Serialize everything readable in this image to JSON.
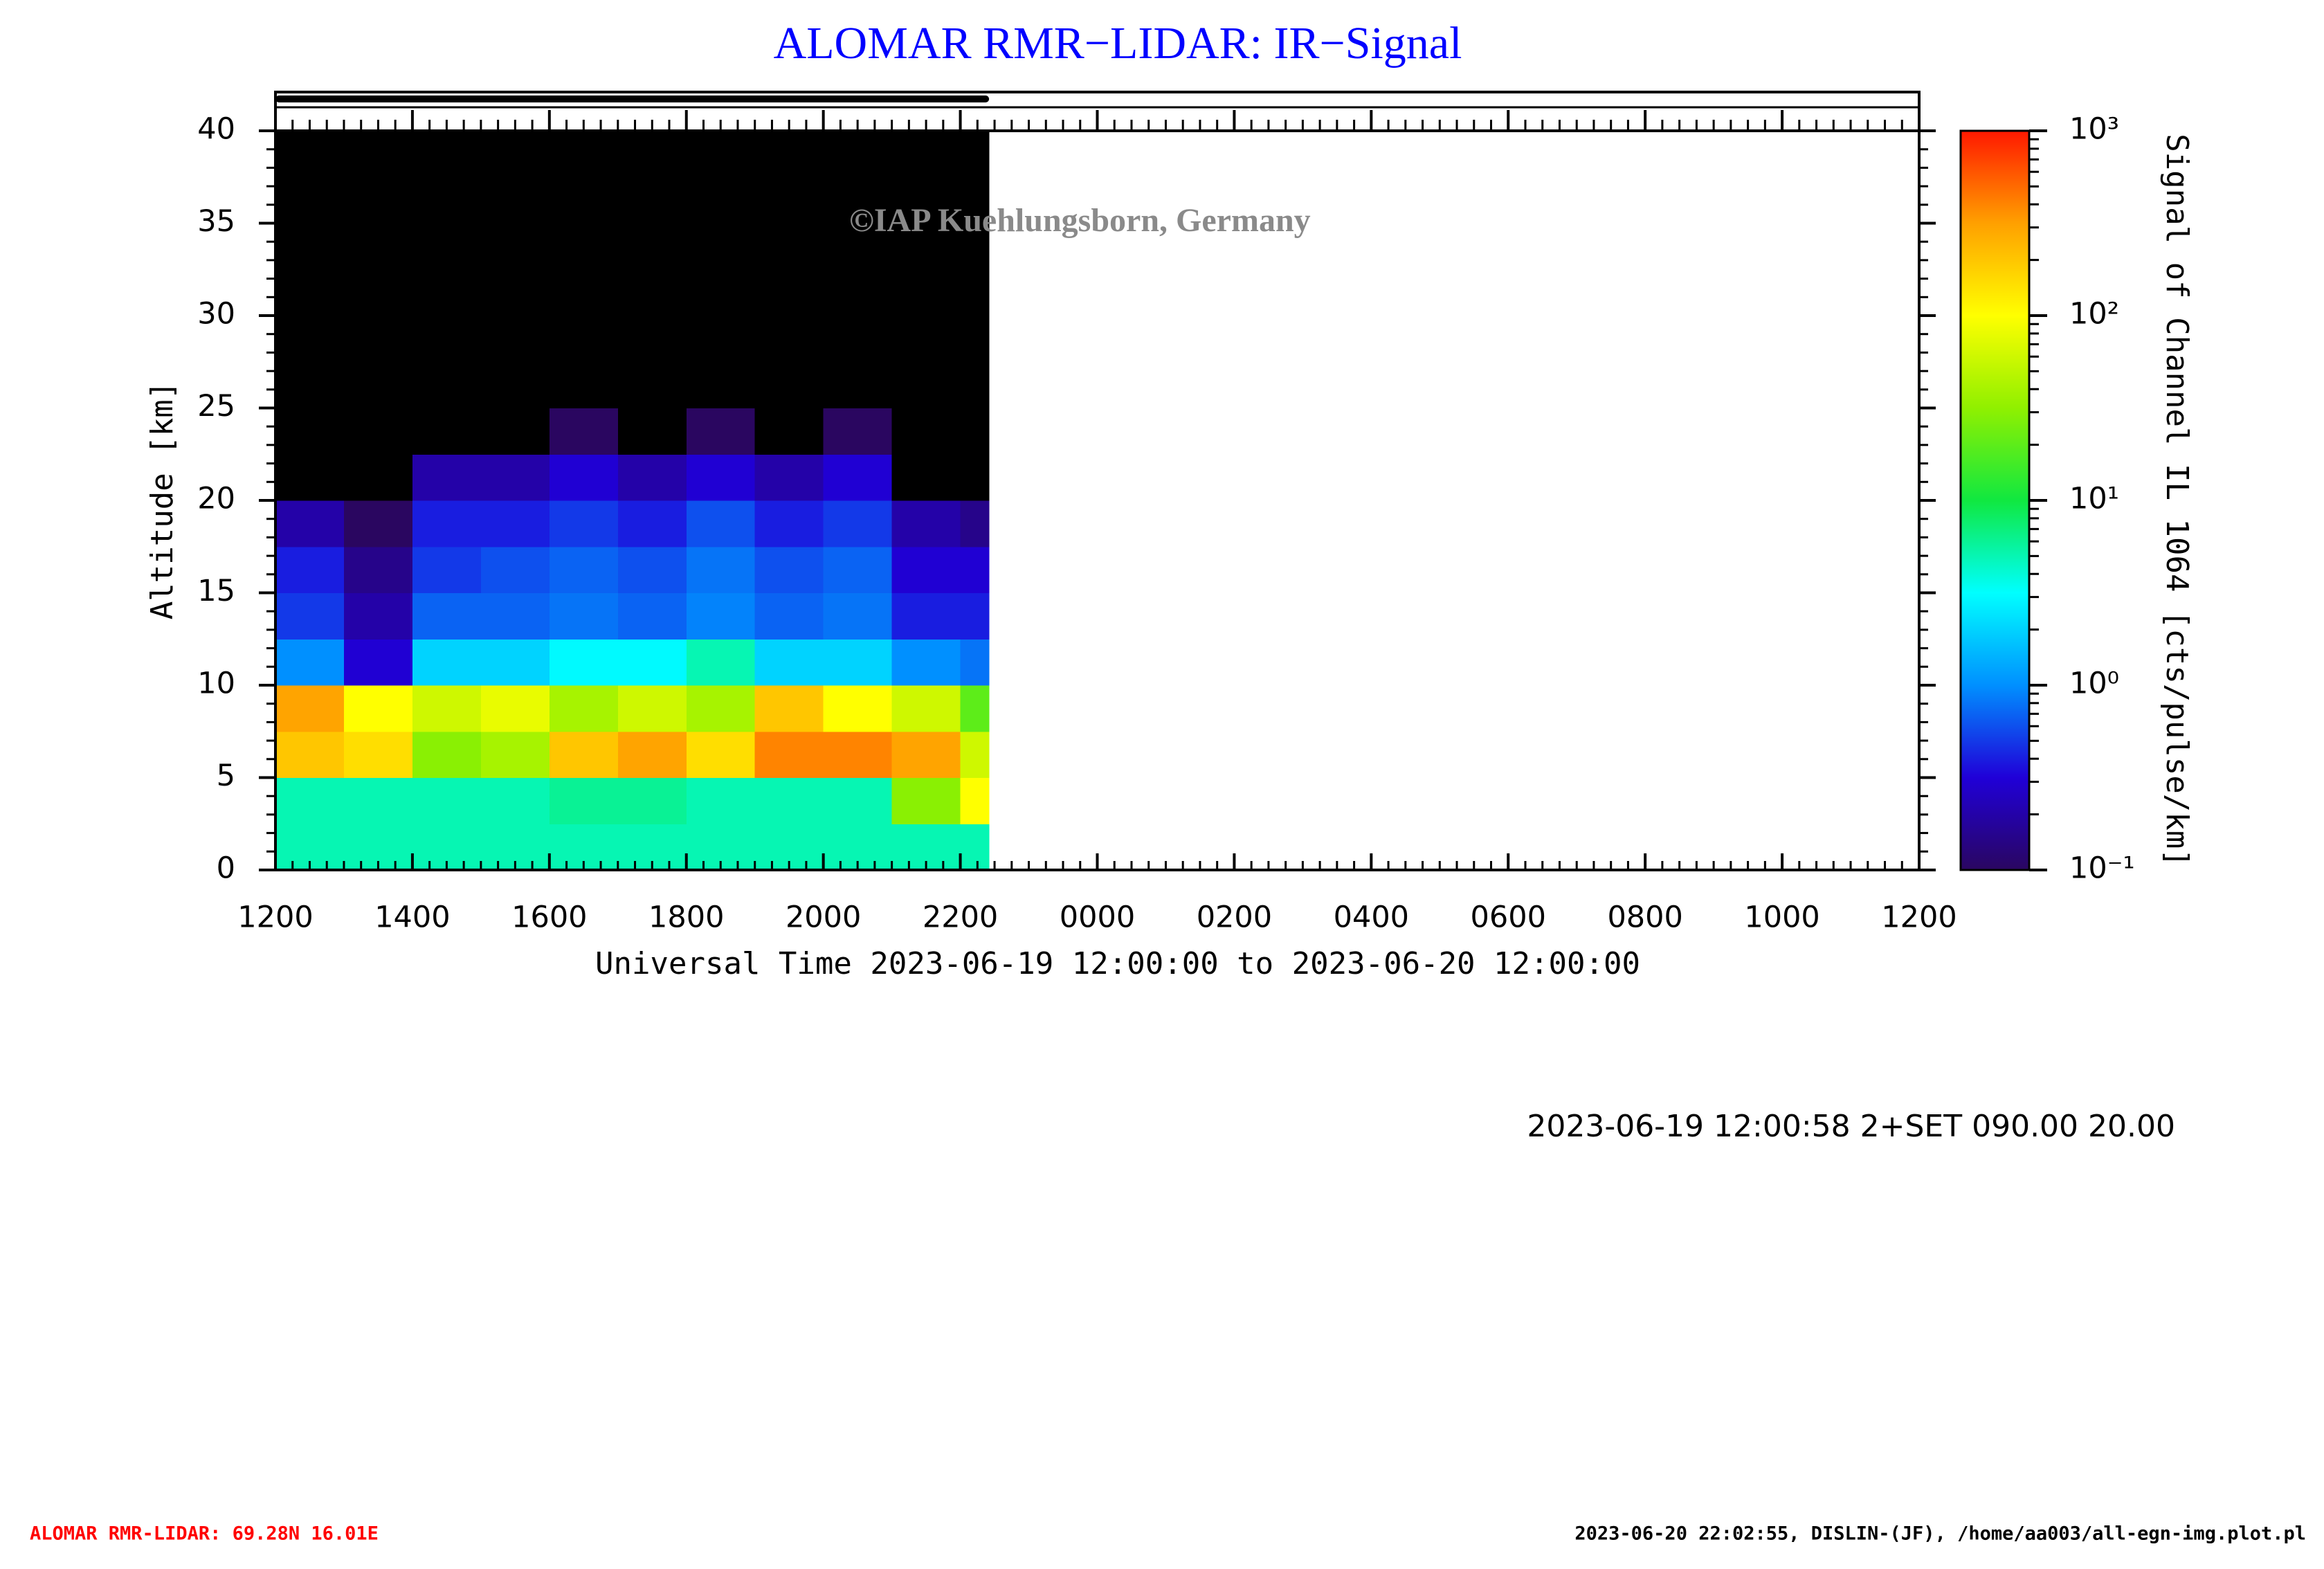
{
  "chart_data": {
    "type": "heatmap",
    "title": "ALOMAR RMR−LIDAR: IR−Signal",
    "xlabel": "Universal Time 2023-06-19 12:00:00 to 2023-06-20 12:00:00",
    "ylabel": "Altitude [km]",
    "watermark": "©IAP Kuehlungsborn, Germany",
    "run_info": "2023-06-19 12:00:58 2+SET 090.00 20.00",
    "station": "ALOMAR RMR-LIDAR: 69.28N 16.01E",
    "credit": "2023-06-20 22:02:55, DISLIN-(JF), /home/aa003/all-egn-img.plot.pl",
    "xlim": [
      0,
      24
    ],
    "xticks": [
      {
        "value": 0,
        "label": "1200"
      },
      {
        "value": 2,
        "label": "1400"
      },
      {
        "value": 4,
        "label": "1600"
      },
      {
        "value": 6,
        "label": "1800"
      },
      {
        "value": 8,
        "label": "2000"
      },
      {
        "value": 10,
        "label": "2200"
      },
      {
        "value": 12,
        "label": "0000"
      },
      {
        "value": 14,
        "label": "0200"
      },
      {
        "value": 16,
        "label": "0400"
      },
      {
        "value": 18,
        "label": "0600"
      },
      {
        "value": 20,
        "label": "0800"
      },
      {
        "value": 22,
        "label": "1000"
      },
      {
        "value": 24,
        "label": "1200"
      }
    ],
    "ylim": [
      0,
      40
    ],
    "yticks": [
      0,
      5,
      10,
      15,
      20,
      25,
      30,
      35,
      40
    ],
    "x_bins": [
      0,
      1,
      2,
      3,
      4,
      5,
      6,
      7,
      8,
      9,
      10,
      10.42
    ],
    "y_bins": [
      0,
      2.5,
      5,
      7.5,
      10,
      12.5,
      15,
      17.5,
      20,
      22.5,
      25,
      27.5,
      30,
      32.5,
      35,
      37.5,
      40
    ],
    "values": [
      [
        5,
        5,
        200,
        300,
        1,
        0.5,
        0.4,
        0.2,
        0.08,
        0.03,
        0.03,
        0.03,
        0.03,
        0.03,
        0.03,
        0.03
      ],
      [
        5,
        5,
        150,
        100,
        0.3,
        0.2,
        0.15,
        0.1,
        0.05,
        0.03,
        0.03,
        0.03,
        0.03,
        0.03,
        0.03,
        0.03
      ],
      [
        5,
        5,
        30,
        60,
        2,
        0.7,
        0.5,
        0.4,
        0.2,
        0.05,
        0.03,
        0.03,
        0.03,
        0.03,
        0.03,
        0.03
      ],
      [
        5,
        5,
        40,
        80,
        2,
        0.7,
        0.6,
        0.4,
        0.2,
        0.05,
        0.03,
        0.03,
        0.03,
        0.03,
        0.03,
        0.03
      ],
      [
        5,
        6,
        200,
        40,
        3,
        0.8,
        0.7,
        0.5,
        0.3,
        0.1,
        0.03,
        0.03,
        0.03,
        0.03,
        0.03,
        0.03
      ],
      [
        5,
        6,
        300,
        60,
        3,
        0.7,
        0.6,
        0.4,
        0.2,
        0.05,
        0.03,
        0.03,
        0.03,
        0.03,
        0.03,
        0.03
      ],
      [
        5,
        5,
        150,
        40,
        5,
        0.9,
        0.8,
        0.6,
        0.3,
        0.1,
        0.03,
        0.03,
        0.03,
        0.03,
        0.03,
        0.03
      ],
      [
        5,
        5,
        400,
        200,
        2,
        0.7,
        0.6,
        0.4,
        0.2,
        0.08,
        0.03,
        0.03,
        0.03,
        0.03,
        0.03,
        0.03
      ],
      [
        5,
        5,
        400,
        100,
        2,
        0.8,
        0.7,
        0.5,
        0.3,
        0.1,
        0.03,
        0.03,
        0.03,
        0.03,
        0.03,
        0.03
      ],
      [
        5,
        30,
        300,
        60,
        1,
        0.4,
        0.3,
        0.2,
        0.08,
        0.03,
        0.03,
        0.03,
        0.03,
        0.03,
        0.03,
        0.03
      ],
      [
        5,
        100,
        60,
        20,
        0.8,
        0.4,
        0.3,
        0.15,
        0.05,
        0.03,
        0.03,
        0.03,
        0.03,
        0.03,
        0.03,
        0.03
      ]
    ],
    "colorbar": {
      "label": "Signal of Channel IL 1064 [cts/pulse/km]",
      "log": true,
      "clim": [
        0.1,
        1000
      ],
      "ticks": [
        {
          "value": 0.1,
          "label": "10⁻¹"
        },
        {
          "value": 1,
          "label": "10⁰"
        },
        {
          "value": 10,
          "label": "10¹"
        },
        {
          "value": 100,
          "label": "10²"
        },
        {
          "value": 1000,
          "label": "10³"
        }
      ],
      "colormap": [
        "#2a0660",
        "#2000d8",
        "#0090ff",
        "#00ffff",
        "#10e840",
        "#90f000",
        "#ffff00",
        "#ffa000",
        "#ff1800"
      ],
      "under_color": "#000000"
    }
  }
}
